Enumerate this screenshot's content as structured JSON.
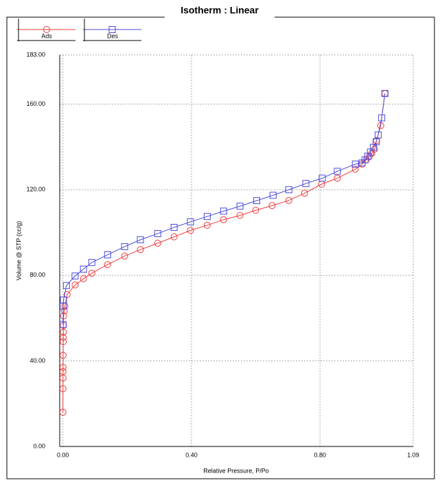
{
  "chart_data": {
    "type": "line",
    "title": "Isotherm :   Linear",
    "xlabel": "Relative Pressure, P/Po",
    "ylabel": "Volume @ STP (cc/g)",
    "xlim": [
      -0.01,
      1.09
    ],
    "ylim": [
      0,
      183
    ],
    "xticks": [
      {
        "value": 0,
        "label": "0.00"
      },
      {
        "value": 0.4,
        "label": "0.40"
      },
      {
        "value": 0.8,
        "label": "0.80"
      },
      {
        "value": 1.09,
        "label": "1.09"
      }
    ],
    "yticks": [
      {
        "value": 0,
        "label": "0.00"
      },
      {
        "value": 40,
        "label": "40.00"
      },
      {
        "value": 80,
        "label": "80.00"
      },
      {
        "value": 120,
        "label": "120.00"
      },
      {
        "value": 160,
        "label": "160.00"
      },
      {
        "value": 183,
        "label": "183.00"
      }
    ],
    "grid": true,
    "series": [
      {
        "name": "Ads",
        "color": "#ee3a3a",
        "marker": "circle",
        "x": [
          0.0001,
          0.0002,
          0.0003,
          0.0004,
          0.0005,
          0.0007,
          0.0009,
          0.001,
          0.0012,
          0.0015,
          0.002,
          0.004,
          0.006,
          0.013,
          0.038,
          0.064,
          0.09,
          0.139,
          0.192,
          0.241,
          0.295,
          0.346,
          0.397,
          0.449,
          0.5,
          0.551,
          0.6,
          0.651,
          0.703,
          0.752,
          0.805,
          0.854,
          0.91,
          0.931,
          0.944,
          0.953,
          0.961,
          0.97,
          0.976,
          0.989,
          1.002
        ],
        "values": [
          16,
          27,
          32,
          35,
          37,
          42.6,
          49,
          51,
          53.4,
          56.6,
          61,
          63.4,
          65.6,
          71,
          75.5,
          78.4,
          81,
          85,
          89,
          92,
          95,
          98,
          101,
          103.4,
          106,
          108,
          110.4,
          112.6,
          115,
          118.4,
          122.6,
          125.4,
          129.6,
          132,
          134,
          135.4,
          137,
          139,
          143,
          150,
          165
        ]
      },
      {
        "name": "Des",
        "color": "#4848dd",
        "marker": "square",
        "x": [
          1.002,
          0.992,
          0.981,
          0.975,
          0.966,
          0.957,
          0.949,
          0.94,
          0.931,
          0.91,
          0.854,
          0.807,
          0.756,
          0.703,
          0.654,
          0.603,
          0.551,
          0.5,
          0.449,
          0.397,
          0.346,
          0.295,
          0.241,
          0.192,
          0.139,
          0.09,
          0.064,
          0.038,
          0.011,
          0.002,
          0.001,
          0.0005
        ],
        "values": [
          165,
          153.6,
          145.6,
          142.4,
          139.8,
          137.6,
          135.7,
          134,
          132.5,
          132,
          128.6,
          125.4,
          122.9,
          120,
          117.4,
          114.9,
          112.3,
          110,
          107.5,
          105,
          102.4,
          99.5,
          96.6,
          93.4,
          89.6,
          86,
          82.9,
          79.7,
          75.2,
          68.5,
          65.6,
          57
        ]
      }
    ]
  }
}
